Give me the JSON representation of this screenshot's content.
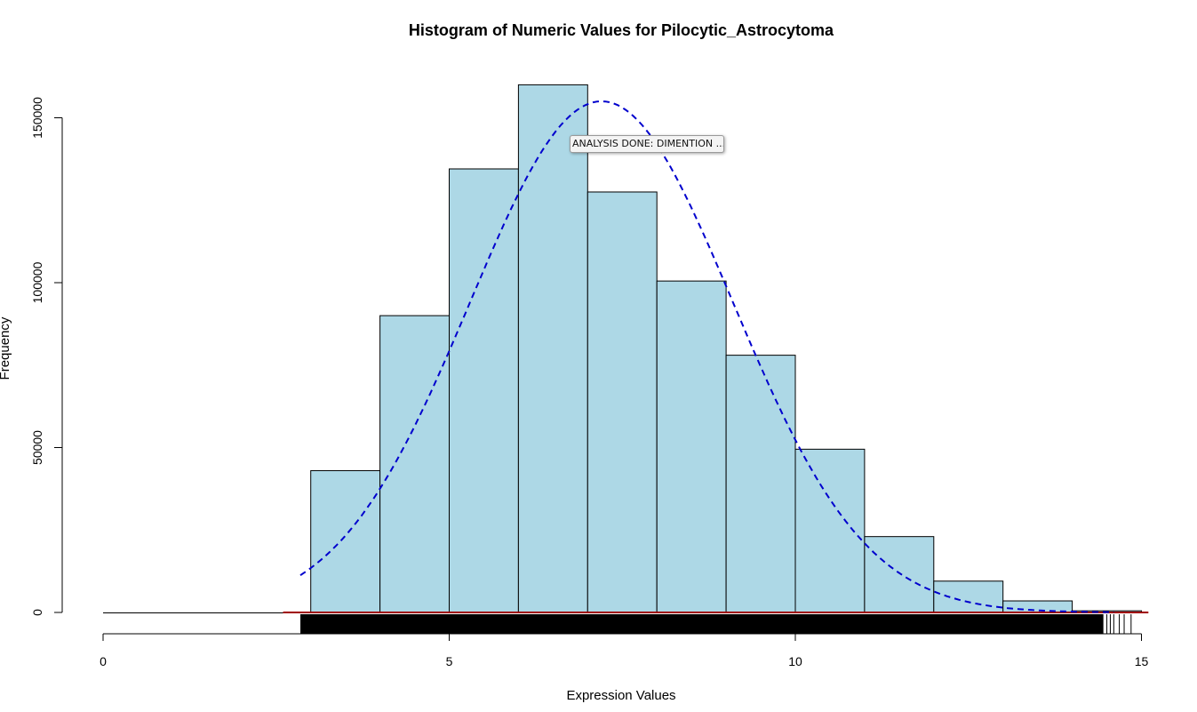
{
  "chart_data": {
    "type": "bar",
    "title": "Histogram of Numeric Values for Pilocytic_Astrocytoma",
    "xlabel": "Expression Values",
    "ylabel": "Frequency",
    "xlim": [
      0,
      15
    ],
    "ylim": [
      0,
      162000
    ],
    "x_ticks": [
      0,
      5,
      10,
      15
    ],
    "y_ticks": [
      0,
      50000,
      100000,
      150000
    ],
    "bins": [
      {
        "start": 3,
        "end": 4,
        "value": 43000
      },
      {
        "start": 4,
        "end": 5,
        "value": 90000
      },
      {
        "start": 5,
        "end": 6,
        "value": 134500
      },
      {
        "start": 6,
        "end": 7,
        "value": 160000
      },
      {
        "start": 7,
        "end": 8,
        "value": 127500
      },
      {
        "start": 8,
        "end": 9,
        "value": 100500
      },
      {
        "start": 9,
        "end": 10,
        "value": 78000
      },
      {
        "start": 10,
        "end": 11,
        "value": 49500
      },
      {
        "start": 11,
        "end": 12,
        "value": 23000
      },
      {
        "start": 12,
        "end": 13,
        "value": 9500
      },
      {
        "start": 13,
        "end": 14,
        "value": 3500
      },
      {
        "start": 14,
        "end": 15,
        "value": 500
      }
    ],
    "density_curve": {
      "mean": 7.2,
      "sd": 1.9,
      "peak": 155000,
      "x_from": 2.85,
      "x_to": 14.6,
      "color": "#0000cd",
      "style": "dashed"
    },
    "baseline_line": {
      "x_from": 2.6,
      "x_to": 15.1,
      "color": "#a00000"
    },
    "zero_line": {
      "x_from": 0,
      "x_to": 2.6,
      "color": "#000000"
    },
    "rug": {
      "x_from": 2.85,
      "dense_to": 14.45,
      "sparse_ticks": [
        14.5,
        14.55,
        14.6,
        14.68,
        14.75,
        14.85
      ]
    },
    "bar_fill": "#add8e6",
    "bar_stroke": "#000000"
  },
  "tooltip": {
    "text": "ANALYSIS DONE: DIMENTION ..."
  }
}
